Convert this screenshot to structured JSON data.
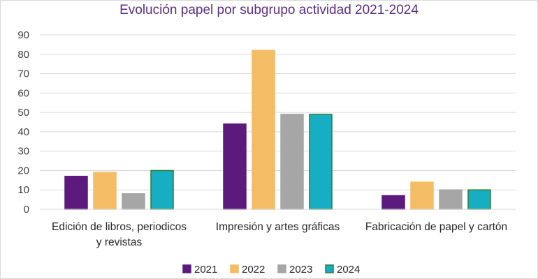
{
  "chart_data": {
    "type": "bar",
    "title": "Evolución papel por subgrupo actividad 2021-2024",
    "categories": [
      [
        "Edición de libros, periodicos",
        "y revistas"
      ],
      [
        "Impresión y artes gráficas"
      ],
      [
        "Fabricación de papel y cartón"
      ]
    ],
    "series": [
      {
        "name": "2021",
        "values": [
          17,
          44,
          7
        ],
        "color": "#5c1a7c",
        "stroke": "#5c1a7c"
      },
      {
        "name": "2022",
        "values": [
          19,
          82,
          14
        ],
        "color": "#f5bc66",
        "stroke": "#f5bc66"
      },
      {
        "name": "2023",
        "values": [
          8,
          49,
          10
        ],
        "color": "#a6a6a6",
        "stroke": "#a6a6a6"
      },
      {
        "name": "2024",
        "values": [
          20,
          49,
          10
        ],
        "color": "#17adc3",
        "stroke": "#2e7d32"
      }
    ],
    "ylim": [
      0,
      90
    ],
    "yticks": [
      0,
      10,
      20,
      30,
      40,
      50,
      60,
      70,
      80,
      90
    ],
    "grid": true,
    "legend": "bottom",
    "colors": {
      "title": "#5c2d82",
      "grid": "#d9d9d9",
      "frame": "#d9d9d9"
    }
  }
}
